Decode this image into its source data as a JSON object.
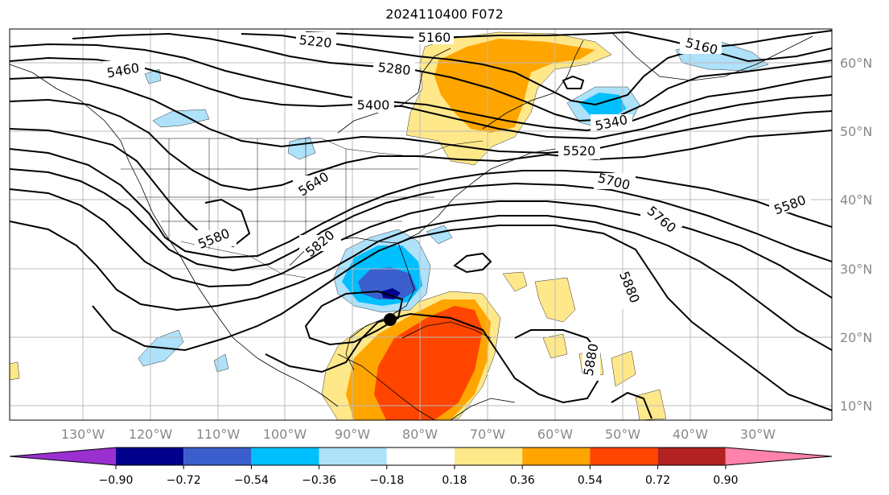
{
  "title": "2024110400 F072",
  "lat_labels": [
    "60°N",
    "50°N",
    "40°N",
    "30°N",
    "20°N",
    "10°N"
  ],
  "lon_labels": [
    "130°W",
    "120°W",
    "110°W",
    "100°W",
    "90°W",
    "80°W",
    "70°W",
    "60°W",
    "50°W",
    "40°W",
    "30°W"
  ],
  "contour_labels": [
    "5220",
    "5160",
    "5460",
    "5280",
    "5400",
    "5160",
    "5340",
    "5520",
    "5700",
    "5640",
    "5580",
    "5580",
    "5760",
    "5820",
    "5880",
    "5880"
  ],
  "colorbar": {
    "ticks": [
      "−0.90",
      "−0.72",
      "−0.54",
      "−0.36",
      "−0.18",
      "0.18",
      "0.36",
      "0.54",
      "0.72",
      "0.90"
    ],
    "colors": [
      "#9b30d0",
      "#00008b",
      "#3a5fcd",
      "#00bfff",
      "#aee1fa",
      "#ffffff",
      "#ffe88a",
      "#ffa500",
      "#ff4500",
      "#b22222",
      "#ff82ab"
    ]
  },
  "anomaly_colors": {
    "neg_light": "#aee1fa",
    "neg_mid": "#00bfff",
    "neg_strong": "#3a5fcd",
    "neg_extreme": "#00008b",
    "pos_light": "#ffe88a",
    "pos_mid": "#ffa500",
    "pos_strong": "#ff4500"
  },
  "marker": {
    "type": "storm-center",
    "color": "#000000"
  }
}
